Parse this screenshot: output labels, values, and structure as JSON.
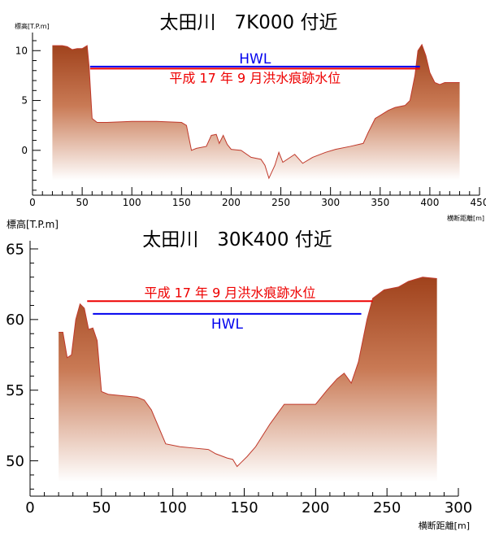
{
  "chart_data": [
    {
      "type": "area",
      "title": "太田川　7K000 付近",
      "ylabel": "標高[T.P.m]",
      "xlabel": "横断距離[m]",
      "xlim": [
        0,
        450
      ],
      "ylim": [
        -4.5,
        11
      ],
      "x_ticks": [
        0,
        50,
        100,
        150,
        200,
        250,
        300,
        350,
        400,
        450
      ],
      "y_ticks": [
        0,
        5,
        10
      ],
      "profile": [
        [
          20,
          10.5
        ],
        [
          30,
          10.5
        ],
        [
          35,
          10.4
        ],
        [
          40,
          10.1
        ],
        [
          45,
          10.2
        ],
        [
          50,
          10.2
        ],
        [
          55,
          10.5
        ],
        [
          57,
          8.4
        ],
        [
          60,
          3.2
        ],
        [
          65,
          2.8
        ],
        [
          75,
          2.8
        ],
        [
          100,
          2.9
        ],
        [
          125,
          2.9
        ],
        [
          150,
          2.8
        ],
        [
          155,
          2.5
        ],
        [
          160,
          0
        ],
        [
          165,
          0.2
        ],
        [
          175,
          0.4
        ],
        [
          180,
          1.5
        ],
        [
          185,
          1.6
        ],
        [
          188,
          0.7
        ],
        [
          192,
          1.5
        ],
        [
          196,
          0.6
        ],
        [
          200,
          0.1
        ],
        [
          210,
          0
        ],
        [
          220,
          -0.7
        ],
        [
          230,
          -0.9
        ],
        [
          234,
          -1.5
        ],
        [
          238,
          -2.8
        ],
        [
          244,
          -1.5
        ],
        [
          248,
          -0.2
        ],
        [
          252,
          -1.2
        ],
        [
          258,
          -0.8
        ],
        [
          264,
          -0.4
        ],
        [
          272,
          -1.3
        ],
        [
          282,
          -0.7
        ],
        [
          295,
          -0.2
        ],
        [
          305,
          0.1
        ],
        [
          320,
          0.4
        ],
        [
          333,
          0.7
        ],
        [
          338,
          1.8
        ],
        [
          345,
          3.2
        ],
        [
          350,
          3.5
        ],
        [
          358,
          4.0
        ],
        [
          365,
          4.3
        ],
        [
          375,
          4.5
        ],
        [
          380,
          5
        ],
        [
          385,
          7.5
        ],
        [
          388,
          10
        ],
        [
          392,
          10.6
        ],
        [
          396,
          9.5
        ],
        [
          400,
          7.8
        ],
        [
          405,
          6.8
        ],
        [
          410,
          6.6
        ],
        [
          415,
          6.8
        ],
        [
          425,
          6.8
        ],
        [
          430,
          6.8
        ]
      ],
      "fill_bottom": -3,
      "lines": [
        {
          "name": "HWL",
          "y": 8.4,
          "x1": 58,
          "x2": 390,
          "color": "#0000ee"
        },
        {
          "name": "平成 17 年 9 月洪水痕跡水位",
          "y": 8.2,
          "x1": 58,
          "x2": 390,
          "color": "#ee0000"
        }
      ],
      "colors": {
        "fill_top": "#a0421c",
        "fill_bottom": "#ffffff",
        "profile_line": "#c0392b"
      }
    },
    {
      "type": "area",
      "title": "太田川　30K400 付近",
      "ylabel": "標高[T.P.m]",
      "xlabel": "横断距離[m]",
      "xlim": [
        0,
        300
      ],
      "ylim": [
        47.5,
        65
      ],
      "x_ticks": [
        0,
        50,
        100,
        150,
        200,
        250,
        300
      ],
      "y_ticks": [
        50,
        55,
        60,
        65
      ],
      "profile": [
        [
          20,
          59.1
        ],
        [
          23,
          59.1
        ],
        [
          26,
          57.3
        ],
        [
          29,
          57.5
        ],
        [
          32,
          60
        ],
        [
          35,
          61.1
        ],
        [
          38,
          60.8
        ],
        [
          41,
          59.3
        ],
        [
          44,
          59.4
        ],
        [
          47,
          58.5
        ],
        [
          50,
          54.9
        ],
        [
          55,
          54.7
        ],
        [
          65,
          54.6
        ],
        [
          75,
          54.5
        ],
        [
          80,
          54.3
        ],
        [
          85,
          53.6
        ],
        [
          90,
          52.4
        ],
        [
          95,
          51.2
        ],
        [
          105,
          51
        ],
        [
          115,
          50.9
        ],
        [
          125,
          50.8
        ],
        [
          130,
          50.5
        ],
        [
          138,
          50.2
        ],
        [
          142,
          50.1
        ],
        [
          145,
          49.6
        ],
        [
          148,
          49.9
        ],
        [
          152,
          50.3
        ],
        [
          158,
          51
        ],
        [
          168,
          52.6
        ],
        [
          178,
          54
        ],
        [
          188,
          54
        ],
        [
          200,
          54
        ],
        [
          208,
          55
        ],
        [
          215,
          55.8
        ],
        [
          220,
          56.2
        ],
        [
          225,
          55.5
        ],
        [
          230,
          57
        ],
        [
          236,
          60
        ],
        [
          240,
          61.5
        ],
        [
          248,
          62.1
        ],
        [
          258,
          62.3
        ],
        [
          265,
          62.7
        ],
        [
          275,
          63
        ],
        [
          285,
          62.9
        ]
      ],
      "fill_bottom": 48.5,
      "lines": [
        {
          "name": "平成 17 年 9 月洪水痕跡水位",
          "y": 61.3,
          "x1": 40,
          "x2": 240,
          "color": "#ee0000"
        },
        {
          "name": "HWL",
          "y": 60.4,
          "x1": 44,
          "x2": 232,
          "color": "#0000ee"
        }
      ],
      "colors": {
        "fill_top": "#a0421c",
        "fill_bottom": "#ffffff",
        "profile_line": "#c0392b"
      }
    }
  ]
}
